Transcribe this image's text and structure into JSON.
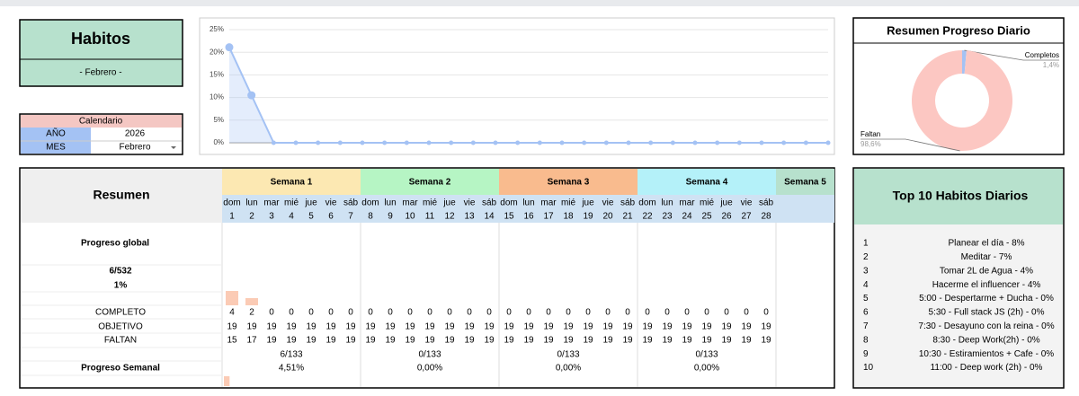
{
  "header": {
    "title": "Habitos",
    "subtitle": "- Febrero -"
  },
  "calendar": {
    "title": "Calendario",
    "year_label": "AÑO",
    "year": "2026",
    "month_label": "MES",
    "month": "Febrero"
  },
  "chart_data": [
    {
      "type": "line",
      "color": "#a4c2f4",
      "values": [
        21.1,
        10.5,
        0,
        0,
        0,
        0,
        0,
        0,
        0,
        0,
        0,
        0,
        0,
        0,
        0,
        0,
        0,
        0,
        0,
        0,
        0,
        0,
        0,
        0,
        0,
        0,
        0,
        0
      ],
      "ylim": [
        0,
        25
      ],
      "yticks": [
        {
          "value": 0,
          "label": "0%"
        },
        {
          "value": 5,
          "label": "5%"
        },
        {
          "value": 10,
          "label": "10%"
        },
        {
          "value": 15,
          "label": "15%"
        },
        {
          "value": 20,
          "label": "20%"
        },
        {
          "value": 25,
          "label": "25%"
        }
      ],
      "grid": true
    },
    {
      "type": "pie",
      "title": "Resumen Progreso Diario",
      "donut": true,
      "categories": [
        "Completos",
        "Faltan"
      ],
      "values": [
        1.4,
        98.6
      ],
      "value_labels": [
        "1,4%",
        "98,6%"
      ],
      "colors": [
        "#a4c2f4",
        "#fcc7c2"
      ]
    }
  ],
  "table": {
    "title": "Resumen",
    "weeks": [
      {
        "name": "Semana 1",
        "color": "#fce8b2"
      },
      {
        "name": "Semana 2",
        "color": "#b6f5c4"
      },
      {
        "name": "Semana 3",
        "color": "#f9bb8e"
      },
      {
        "name": "Semana 4",
        "color": "#b4f1f9"
      },
      {
        "name": "Semana 5",
        "color": "#b7e1cd"
      }
    ],
    "days": [
      {
        "weekday": "dom",
        "day": "1"
      },
      {
        "weekday": "lun",
        "day": "2"
      },
      {
        "weekday": "mar",
        "day": "3"
      },
      {
        "weekday": "mié",
        "day": "4"
      },
      {
        "weekday": "jue",
        "day": "5"
      },
      {
        "weekday": "vie",
        "day": "6"
      },
      {
        "weekday": "sáb",
        "day": "7"
      },
      {
        "weekday": "dom",
        "day": "8"
      },
      {
        "weekday": "lun",
        "day": "9"
      },
      {
        "weekday": "mar",
        "day": "10"
      },
      {
        "weekday": "mié",
        "day": "11"
      },
      {
        "weekday": "jue",
        "day": "12"
      },
      {
        "weekday": "vie",
        "day": "13"
      },
      {
        "weekday": "sáb",
        "day": "14"
      },
      {
        "weekday": "dom",
        "day": "15"
      },
      {
        "weekday": "lun",
        "day": "16"
      },
      {
        "weekday": "mar",
        "day": "17"
      },
      {
        "weekday": "mié",
        "day": "18"
      },
      {
        "weekday": "jue",
        "day": "19"
      },
      {
        "weekday": "vie",
        "day": "20"
      },
      {
        "weekday": "sáb",
        "day": "21"
      },
      {
        "weekday": "dom",
        "day": "22"
      },
      {
        "weekday": "lun",
        "day": "23"
      },
      {
        "weekday": "mar",
        "day": "24"
      },
      {
        "weekday": "mié",
        "day": "25"
      },
      {
        "weekday": "jue",
        "day": "26"
      },
      {
        "weekday": "vie",
        "day": "27"
      },
      {
        "weekday": "sáb",
        "day": "28"
      }
    ],
    "global": {
      "label": "Progreso global",
      "fraction": "6/532",
      "percent": "1%"
    },
    "rows": [
      {
        "label": "COMPLETO",
        "values": [
          4,
          2,
          0,
          0,
          0,
          0,
          0,
          0,
          0,
          0,
          0,
          0,
          0,
          0,
          0,
          0,
          0,
          0,
          0,
          0,
          0,
          0,
          0,
          0,
          0,
          0,
          0,
          0
        ]
      },
      {
        "label": "OBJETIVO",
        "values": [
          19,
          19,
          19,
          19,
          19,
          19,
          19,
          19,
          19,
          19,
          19,
          19,
          19,
          19,
          19,
          19,
          19,
          19,
          19,
          19,
          19,
          19,
          19,
          19,
          19,
          19,
          19,
          19
        ]
      },
      {
        "label": "FALTAN",
        "values": [
          15,
          17,
          19,
          19,
          19,
          19,
          19,
          19,
          19,
          19,
          19,
          19,
          19,
          19,
          19,
          19,
          19,
          19,
          19,
          19,
          19,
          19,
          19,
          19,
          19,
          19,
          19,
          19
        ]
      }
    ],
    "weekly": {
      "label": "Progreso Semanal",
      "fractions": [
        "6/133",
        "0/133",
        "0/133",
        "0/133"
      ],
      "values": [
        4.51,
        0,
        0,
        0
      ],
      "value_labels": [
        "4,51%",
        "0,00%",
        "0,00%",
        "0,00%"
      ]
    }
  },
  "top10": {
    "title": "Top 10 Habitos Diarios",
    "items": [
      {
        "rank": "1",
        "text": "Planear el día - 8%"
      },
      {
        "rank": "2",
        "text": "Meditar - 7%"
      },
      {
        "rank": "3",
        "text": "Tomar 2L de Agua - 4%"
      },
      {
        "rank": "4",
        "text": "Hacerme el influencer - 4%"
      },
      {
        "rank": "5",
        "text": "5:00 - Despertarme + Ducha - 0%"
      },
      {
        "rank": "6",
        "text": "5:30  - Full stack JS (2h) - 0%"
      },
      {
        "rank": "7",
        "text": "7:30 - Desayuno con la reina - 0%"
      },
      {
        "rank": "8",
        "text": "8:30 - Deep Work(2h) - 0%"
      },
      {
        "rank": "9",
        "text": "10:30 - Estiramientos + Cafe - 0%"
      },
      {
        "rank": "10",
        "text": "11:00 - Deep work (2h) - 0%"
      }
    ]
  }
}
